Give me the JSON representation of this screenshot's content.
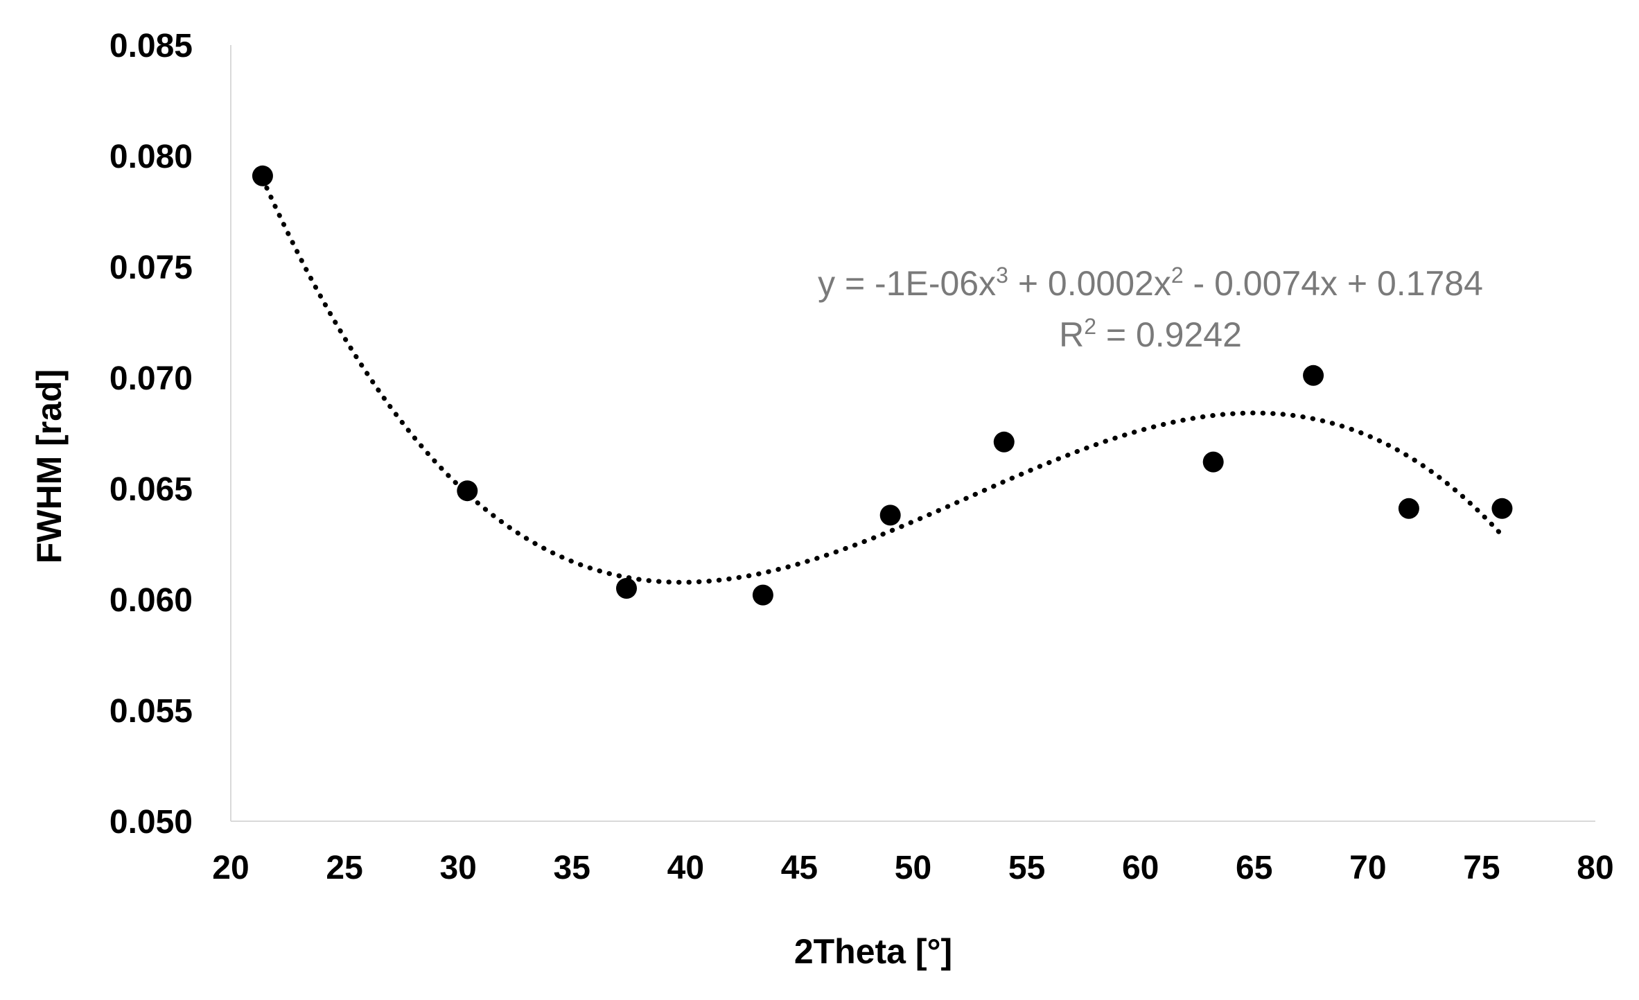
{
  "chart_data": {
    "type": "scatter",
    "xlabel": "2Theta [°]",
    "ylabel": "FWHM [rad]",
    "xlim": [
      20,
      80
    ],
    "ylim": [
      0.05,
      0.085
    ],
    "x_ticks": [
      "20",
      "25",
      "30",
      "35",
      "40",
      "45",
      "50",
      "55",
      "60",
      "65",
      "70",
      "75",
      "80"
    ],
    "y_ticks": [
      "0.050",
      "0.055",
      "0.060",
      "0.065",
      "0.070",
      "0.075",
      "0.080",
      "0.085"
    ],
    "grid": false,
    "marker_color": "#000000",
    "points": [
      {
        "x": 21.4,
        "y": 0.0791
      },
      {
        "x": 30.4,
        "y": 0.0649
      },
      {
        "x": 37.4,
        "y": 0.0605
      },
      {
        "x": 43.4,
        "y": 0.0602
      },
      {
        "x": 49.0,
        "y": 0.0638
      },
      {
        "x": 54.0,
        "y": 0.0671
      },
      {
        "x": 63.2,
        "y": 0.0662
      },
      {
        "x": 67.6,
        "y": 0.0701
      },
      {
        "x": 71.8,
        "y": 0.0641
      },
      {
        "x": 75.9,
        "y": 0.0641
      }
    ],
    "trendline": {
      "type": "polynomial",
      "order": 3,
      "style": "dotted",
      "x_range": [
        21.4,
        75.9
      ],
      "equation_text": {
        "prefix": "y = -1E-06x",
        "sup1": "3",
        "mid1": " + 0.0002x",
        "sup2": "2",
        "suffix": " - 0.0074x + 0.1784"
      },
      "r2_text": {
        "prefix": "R",
        "sup": "2",
        "suffix": " = 0.9242"
      }
    }
  }
}
